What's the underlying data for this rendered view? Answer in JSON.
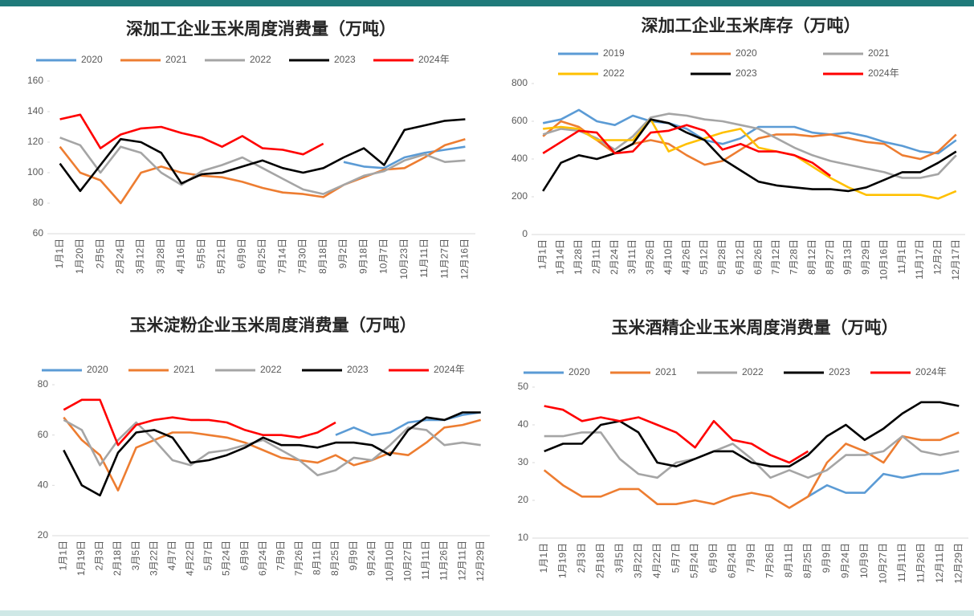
{
  "chart_data": [
    {
      "type": "line",
      "title": "深加工企业玉米周度消费量（万吨）",
      "categories": [
        "1月1日",
        "1月20日",
        "2月5日",
        "2月24日",
        "3月12日",
        "3月28日",
        "4月16日",
        "5月5日",
        "5月21日",
        "6月9日",
        "6月25日",
        "7月14日",
        "7月30日",
        "8月18日",
        "9月2日",
        "9月18日",
        "10月7日",
        "10月23日",
        "11月11日",
        "11月27日",
        "12月16日"
      ],
      "ylim": [
        60,
        160
      ],
      "yticks": [
        60,
        80,
        100,
        120,
        140,
        160
      ],
      "series": [
        {
          "name": "2020",
          "color": "#5b9bd5",
          "values": [
            null,
            null,
            null,
            null,
            null,
            null,
            null,
            null,
            null,
            null,
            null,
            null,
            null,
            null,
            107,
            104,
            103,
            110,
            113,
            115,
            117
          ]
        },
        {
          "name": "2021",
          "color": "#ed7d31",
          "values": [
            117,
            100,
            95,
            80,
            100,
            104,
            100,
            98,
            97,
            94,
            90,
            87,
            86,
            84,
            92,
            97,
            102,
            103,
            110,
            118,
            122
          ]
        },
        {
          "name": "2022",
          "color": "#a5a5a5",
          "values": [
            123,
            118,
            100,
            117,
            113,
            100,
            92,
            101,
            105,
            110,
            103,
            96,
            89,
            86,
            92,
            98,
            101,
            108,
            112,
            107,
            108
          ]
        },
        {
          "name": "2023",
          "color": "#000000",
          "values": [
            106,
            88,
            105,
            122,
            120,
            113,
            93,
            99,
            100,
            104,
            108,
            103,
            100,
            103,
            110,
            116,
            105,
            128,
            131,
            134,
            135
          ]
        },
        {
          "name": "2024年",
          "color": "#ff0000",
          "values": [
            135,
            138,
            116,
            125,
            129,
            130,
            126,
            123,
            117,
            124,
            116,
            115,
            112,
            119,
            null,
            null,
            null,
            null,
            null,
            null,
            null
          ]
        }
      ]
    },
    {
      "type": "line",
      "title": "深加工企业玉米库存（万吨）",
      "categories": [
        "1月1日",
        "1月14日",
        "1月28日",
        "2月11日",
        "2月24日",
        "3月11日",
        "3月26日",
        "4月10日",
        "4月26日",
        "5月12日",
        "5月28日",
        "6月12日",
        "6月26日",
        "7月12日",
        "7月28日",
        "8月12日",
        "8月27日",
        "9月13日",
        "9月29日",
        "10月16日",
        "11月1日",
        "11月17日",
        "12月2日",
        "12月17日"
      ],
      "ylim": [
        0,
        800
      ],
      "yticks": [
        0,
        200,
        400,
        600,
        800
      ],
      "series": [
        {
          "name": "2019",
          "color": "#5b9bd5",
          "values": [
            590,
            610,
            660,
            600,
            580,
            630,
            600,
            590,
            560,
            500,
            480,
            510,
            570,
            570,
            570,
            540,
            530,
            540,
            520,
            490,
            470,
            440,
            430,
            500
          ]
        },
        {
          "name": "2020",
          "color": "#ed7d31",
          "values": [
            520,
            600,
            570,
            500,
            430,
            480,
            500,
            480,
            420,
            370,
            390,
            450,
            510,
            530,
            530,
            520,
            530,
            510,
            490,
            480,
            420,
            400,
            440,
            530
          ]
        },
        {
          "name": "2021",
          "color": "#a5a5a5",
          "values": [
            530,
            560,
            550,
            510,
            450,
            520,
            620,
            640,
            630,
            610,
            600,
            580,
            560,
            510,
            460,
            420,
            390,
            370,
            350,
            330,
            300,
            300,
            320,
            420
          ]
        },
        {
          "name": "2022",
          "color": "#ffc000",
          "values": [
            560,
            570,
            560,
            500,
            500,
            500,
            610,
            440,
            480,
            510,
            540,
            560,
            460,
            440,
            420,
            360,
            300,
            250,
            210,
            210,
            210,
            210,
            190,
            230
          ]
        },
        {
          "name": "2023",
          "color": "#000000",
          "values": [
            230,
            380,
            420,
            400,
            430,
            480,
            610,
            590,
            540,
            500,
            400,
            340,
            280,
            260,
            250,
            240,
            240,
            230,
            250,
            290,
            330,
            330,
            380,
            440
          ]
        },
        {
          "name": "2024年",
          "color": "#ff0000",
          "values": [
            430,
            490,
            550,
            540,
            430,
            440,
            540,
            550,
            580,
            550,
            450,
            480,
            440,
            440,
            420,
            380,
            310,
            null,
            null,
            null,
            null,
            null,
            null,
            null
          ]
        }
      ]
    },
    {
      "type": "line",
      "title": "玉米淀粉企业玉米周度消费量（万吨）",
      "categories": [
        "1月1日",
        "1月19日",
        "2月3日",
        "2月18日",
        "3月5日",
        "3月22日",
        "4月7日",
        "4月22日",
        "5月7日",
        "5月24日",
        "6月9日",
        "6月24日",
        "7月9日",
        "7月26日",
        "8月11日",
        "8月25日",
        "9月9日",
        "9月24日",
        "10月10日",
        "10月27日",
        "11月11日",
        "11月26日",
        "12月11日",
        "12月29日"
      ],
      "ylim": [
        20,
        80
      ],
      "yticks": [
        20,
        40,
        60,
        80
      ],
      "series": [
        {
          "name": "2020",
          "color": "#5b9bd5",
          "values": [
            null,
            null,
            null,
            null,
            null,
            null,
            null,
            null,
            null,
            null,
            null,
            null,
            null,
            null,
            null,
            60,
            63,
            60,
            61,
            65,
            66,
            66,
            68,
            69
          ]
        },
        {
          "name": "2021",
          "color": "#ed7d31",
          "values": [
            67,
            58,
            52,
            38,
            55,
            58,
            61,
            61,
            60,
            59,
            57,
            54,
            51,
            50,
            49,
            52,
            48,
            50,
            53,
            52,
            57,
            63,
            64,
            66
          ]
        },
        {
          "name": "2022",
          "color": "#a5a5a5",
          "values": [
            66,
            62,
            48,
            58,
            65,
            58,
            50,
            48,
            53,
            54,
            56,
            58,
            54,
            50,
            44,
            46,
            51,
            50,
            56,
            63,
            62,
            56,
            57,
            56
          ]
        },
        {
          "name": "2023",
          "color": "#000000",
          "values": [
            54,
            40,
            36,
            53,
            61,
            62,
            59,
            49,
            50,
            52,
            55,
            59,
            56,
            56,
            55,
            57,
            57,
            56,
            52,
            62,
            67,
            66,
            69,
            69
          ]
        },
        {
          "name": "2024年",
          "color": "#ff0000",
          "values": [
            70,
            74,
            74,
            56,
            64,
            66,
            67,
            66,
            66,
            65,
            62,
            60,
            60,
            59,
            61,
            65,
            null,
            null,
            null,
            null,
            null,
            null,
            null,
            null
          ]
        }
      ]
    },
    {
      "type": "line",
      "title": "玉米酒精企业玉米周度消费量（万吨）",
      "categories": [
        "1月1日",
        "1月19日",
        "2月3日",
        "2月18日",
        "3月5日",
        "3月22日",
        "4月22日",
        "5月7日",
        "5月24日",
        "6月9日",
        "6月24日",
        "7月9日",
        "7月26日",
        "8月11日",
        "8月25日",
        "9月9日",
        "9月24日",
        "10月9日",
        "10月27日",
        "11月11日",
        "11月26日",
        "12月11日",
        "12月29日"
      ],
      "ylim": [
        10,
        50
      ],
      "yticks": [
        10,
        20,
        30,
        40,
        50
      ],
      "series": [
        {
          "name": "2020",
          "color": "#5b9bd5",
          "values": [
            null,
            null,
            null,
            null,
            null,
            null,
            null,
            null,
            null,
            null,
            null,
            null,
            null,
            null,
            21,
            24,
            22,
            22,
            27,
            26,
            27,
            27,
            28
          ]
        },
        {
          "name": "2021",
          "color": "#ed7d31",
          "values": [
            28,
            24,
            21,
            21,
            23,
            23,
            19,
            19,
            20,
            19,
            21,
            22,
            21,
            18,
            21,
            30,
            35,
            33,
            30,
            37,
            36,
            36,
            38
          ]
        },
        {
          "name": "2022",
          "color": "#a5a5a5",
          "values": [
            37,
            37,
            38,
            38,
            31,
            27,
            26,
            30,
            31,
            33,
            35,
            31,
            26,
            28,
            26,
            28,
            32,
            32,
            33,
            37,
            33,
            32,
            33
          ]
        },
        {
          "name": "2023",
          "color": "#000000",
          "values": [
            33,
            35,
            35,
            40,
            41,
            38,
            30,
            29,
            31,
            33,
            33,
            30,
            29,
            29,
            32,
            37,
            40,
            36,
            39,
            43,
            46,
            46,
            45
          ]
        },
        {
          "name": "2024年",
          "color": "#ff0000",
          "values": [
            45,
            44,
            41,
            42,
            41,
            42,
            40,
            38,
            34,
            41,
            36,
            35,
            32,
            30,
            33,
            null,
            null,
            null,
            null,
            null,
            null,
            null,
            null
          ]
        }
      ]
    }
  ]
}
